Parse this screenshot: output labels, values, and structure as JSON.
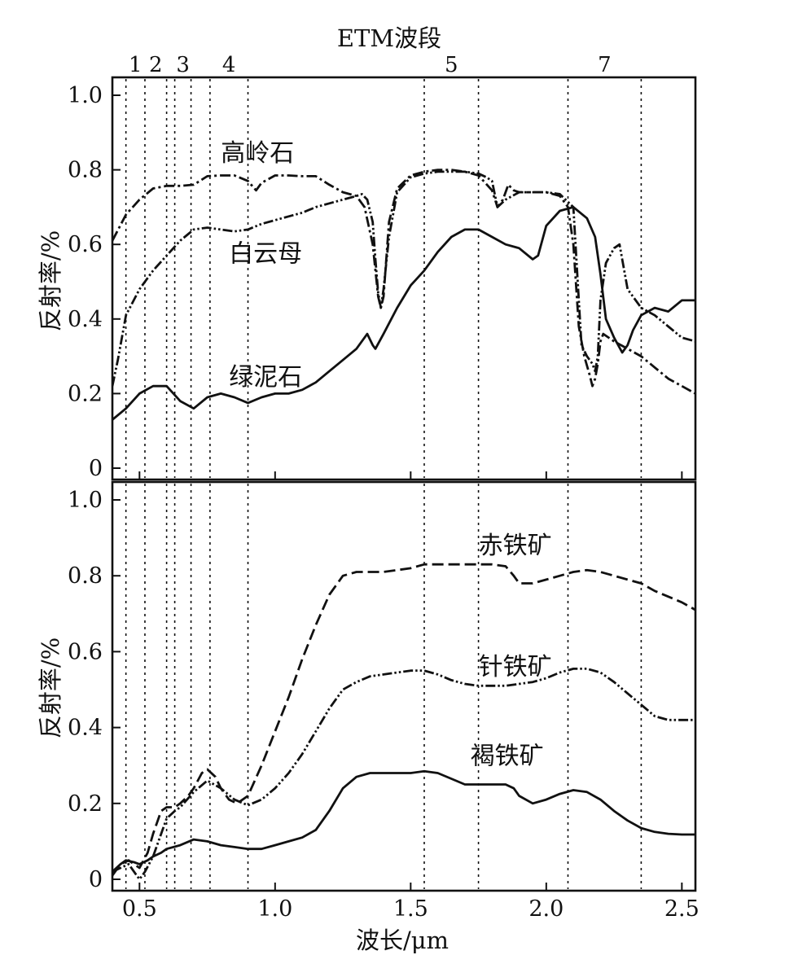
{
  "chart_data": {
    "type": "line",
    "top_label": "ETM波段",
    "xlabel": "波长/μm",
    "xlim": [
      0.4,
      2.55
    ],
    "x_ticks": [
      "0.5",
      "1.0",
      "1.5",
      "2.0",
      "2.5"
    ],
    "x_tick_values": [
      0.5,
      1.0,
      1.5,
      2.0,
      2.5
    ],
    "bands": [
      {
        "label": "1",
        "edges": [
          0.45,
          0.52
        ]
      },
      {
        "label": "2",
        "edges": [
          0.52,
          0.6
        ]
      },
      {
        "label": "3",
        "edges": [
          0.63,
          0.69
        ]
      },
      {
        "label": "4",
        "edges": [
          0.76,
          0.9
        ]
      },
      {
        "label": "5",
        "edges": [
          1.55,
          1.75
        ]
      },
      {
        "label": "7",
        "edges": [
          2.08,
          2.35
        ]
      }
    ],
    "panels": [
      {
        "ylabel": "反射率/%",
        "ylim": [
          0,
          1.0
        ],
        "y_ticks": [
          "0",
          "0.2",
          "0.4",
          "0.6",
          "0.8",
          "1.0"
        ],
        "y_tick_values": [
          0,
          0.2,
          0.4,
          0.6,
          0.8,
          1.0
        ],
        "series": [
          {
            "name": "高岭石",
            "dash": "dash-dot",
            "label_at": [
              0.8,
              0.845
            ],
            "x": [
              0.4,
              0.45,
              0.5,
              0.55,
              0.6,
              0.65,
              0.7,
              0.75,
              0.8,
              0.85,
              0.9,
              0.93,
              0.95,
              1.0,
              1.05,
              1.1,
              1.15,
              1.2,
              1.25,
              1.3,
              1.33,
              1.36,
              1.38,
              1.39,
              1.4,
              1.42,
              1.45,
              1.5,
              1.55,
              1.6,
              1.65,
              1.7,
              1.75,
              1.8,
              1.82,
              1.84,
              1.86,
              1.88,
              1.9,
              1.95,
              2.0,
              2.05,
              2.08,
              2.1,
              2.12,
              2.14,
              2.16,
              2.17,
              2.18,
              2.19,
              2.2,
              2.21,
              2.25,
              2.3,
              2.35,
              2.4,
              2.45,
              2.5,
              2.55
            ],
            "y": [
              0.61,
              0.68,
              0.72,
              0.75,
              0.757,
              0.757,
              0.76,
              0.783,
              0.785,
              0.785,
              0.77,
              0.745,
              0.765,
              0.785,
              0.785,
              0.783,
              0.783,
              0.76,
              0.74,
              0.73,
              0.7,
              0.6,
              0.46,
              0.43,
              0.46,
              0.66,
              0.75,
              0.785,
              0.795,
              0.8,
              0.8,
              0.795,
              0.785,
              0.745,
              0.7,
              0.72,
              0.76,
              0.745,
              0.74,
              0.74,
              0.74,
              0.73,
              0.7,
              0.6,
              0.38,
              0.3,
              0.25,
              0.22,
              0.24,
              0.28,
              0.34,
              0.36,
              0.34,
              0.32,
              0.3,
              0.27,
              0.24,
              0.22,
              0.2
            ]
          },
          {
            "name": "白云母",
            "dash": "dash-dot-dot",
            "label_at": [
              0.83,
              0.575
            ],
            "x": [
              0.4,
              0.42,
              0.45,
              0.5,
              0.55,
              0.6,
              0.65,
              0.7,
              0.75,
              0.8,
              0.85,
              0.9,
              0.95,
              1.0,
              1.05,
              1.1,
              1.15,
              1.2,
              1.25,
              1.3,
              1.32,
              1.34,
              1.36,
              1.37,
              1.38,
              1.39,
              1.4,
              1.42,
              1.45,
              1.5,
              1.55,
              1.6,
              1.65,
              1.7,
              1.75,
              1.78,
              1.8,
              1.82,
              1.85,
              1.9,
              1.95,
              2.0,
              2.05,
              2.1,
              2.12,
              2.13,
              2.15,
              2.17,
              2.18,
              2.19,
              2.2,
              2.22,
              2.25,
              2.27,
              2.3,
              2.35,
              2.4,
              2.45,
              2.5,
              2.55
            ],
            "y": [
              0.22,
              0.29,
              0.41,
              0.48,
              0.53,
              0.57,
              0.61,
              0.64,
              0.645,
              0.64,
              0.635,
              0.64,
              0.655,
              0.665,
              0.675,
              0.685,
              0.7,
              0.71,
              0.72,
              0.73,
              0.735,
              0.72,
              0.66,
              0.56,
              0.47,
              0.43,
              0.48,
              0.62,
              0.74,
              0.78,
              0.79,
              0.795,
              0.795,
              0.795,
              0.79,
              0.78,
              0.77,
              0.7,
              0.72,
              0.74,
              0.74,
              0.74,
              0.735,
              0.7,
              0.45,
              0.33,
              0.3,
              0.28,
              0.26,
              0.3,
              0.45,
              0.55,
              0.59,
              0.6,
              0.48,
              0.43,
              0.41,
              0.38,
              0.35,
              0.34
            ]
          },
          {
            "name": "绿泥石",
            "dash": "solid",
            "label_at": [
              0.83,
              0.245
            ],
            "x": [
              0.4,
              0.45,
              0.5,
              0.55,
              0.6,
              0.65,
              0.7,
              0.75,
              0.8,
              0.85,
              0.9,
              0.95,
              1.0,
              1.05,
              1.1,
              1.15,
              1.2,
              1.25,
              1.3,
              1.34,
              1.36,
              1.37,
              1.4,
              1.45,
              1.5,
              1.55,
              1.6,
              1.65,
              1.7,
              1.75,
              1.8,
              1.85,
              1.9,
              1.95,
              1.97,
              2.0,
              2.05,
              2.1,
              2.15,
              2.18,
              2.2,
              2.22,
              2.25,
              2.28,
              2.3,
              2.32,
              2.35,
              2.4,
              2.45,
              2.5,
              2.55
            ],
            "y": [
              0.13,
              0.16,
              0.2,
              0.22,
              0.22,
              0.18,
              0.16,
              0.19,
              0.2,
              0.19,
              0.175,
              0.19,
              0.2,
              0.2,
              0.21,
              0.23,
              0.26,
              0.29,
              0.32,
              0.36,
              0.33,
              0.32,
              0.36,
              0.43,
              0.49,
              0.53,
              0.58,
              0.62,
              0.64,
              0.64,
              0.62,
              0.6,
              0.59,
              0.56,
              0.57,
              0.65,
              0.69,
              0.7,
              0.67,
              0.62,
              0.52,
              0.4,
              0.35,
              0.31,
              0.33,
              0.37,
              0.41,
              0.43,
              0.42,
              0.45,
              0.45
            ]
          }
        ]
      },
      {
        "ylabel": "反射率/%",
        "ylim": [
          0,
          1.0
        ],
        "y_ticks": [
          "0",
          "0.2",
          "0.4",
          "0.6",
          "0.8",
          "1.0"
        ],
        "y_tick_values": [
          0,
          0.2,
          0.4,
          0.6,
          0.8,
          1.0
        ],
        "series": [
          {
            "name": "赤铁矿",
            "dash": "dash",
            "label_at": [
              1.75,
              0.88
            ],
            "x": [
              0.4,
              0.43,
              0.46,
              0.48,
              0.5,
              0.53,
              0.55,
              0.58,
              0.6,
              0.63,
              0.65,
              0.68,
              0.7,
              0.73,
              0.75,
              0.78,
              0.8,
              0.83,
              0.86,
              0.9,
              0.95,
              1.0,
              1.05,
              1.1,
              1.15,
              1.2,
              1.25,
              1.3,
              1.35,
              1.4,
              1.45,
              1.5,
              1.55,
              1.6,
              1.65,
              1.7,
              1.75,
              1.8,
              1.85,
              1.88,
              1.9,
              1.95,
              2.0,
              2.05,
              2.1,
              2.15,
              2.2,
              2.25,
              2.3,
              2.35,
              2.4,
              2.45,
              2.5,
              2.55
            ],
            "y": [
              0.01,
              0.04,
              0.05,
              0.04,
              0.03,
              0.07,
              0.12,
              0.18,
              0.19,
              0.19,
              0.2,
              0.22,
              0.24,
              0.28,
              0.29,
              0.27,
              0.24,
              0.21,
              0.2,
              0.22,
              0.3,
              0.39,
              0.48,
              0.58,
              0.67,
              0.75,
              0.8,
              0.81,
              0.81,
              0.81,
              0.815,
              0.82,
              0.83,
              0.83,
              0.83,
              0.83,
              0.83,
              0.83,
              0.825,
              0.8,
              0.78,
              0.78,
              0.79,
              0.8,
              0.81,
              0.815,
              0.81,
              0.8,
              0.79,
              0.78,
              0.76,
              0.745,
              0.73,
              0.71
            ]
          },
          {
            "name": "针铁矿",
            "dash": "dash-dot-dot",
            "label_at": [
              1.75,
              0.56
            ],
            "x": [
              0.4,
              0.43,
              0.46,
              0.48,
              0.5,
              0.52,
              0.55,
              0.58,
              0.6,
              0.63,
              0.65,
              0.7,
              0.75,
              0.8,
              0.85,
              0.9,
              0.95,
              1.0,
              1.05,
              1.1,
              1.15,
              1.2,
              1.25,
              1.3,
              1.35,
              1.4,
              1.45,
              1.5,
              1.55,
              1.6,
              1.65,
              1.7,
              1.75,
              1.8,
              1.85,
              1.9,
              1.95,
              2.0,
              2.05,
              2.1,
              2.15,
              2.2,
              2.25,
              2.3,
              2.35,
              2.4,
              2.45,
              2.5,
              2.55
            ],
            "y": [
              0.02,
              0.03,
              0.04,
              0.02,
              0.0,
              0.02,
              0.06,
              0.12,
              0.16,
              0.18,
              0.19,
              0.23,
              0.26,
              0.24,
              0.21,
              0.195,
              0.21,
              0.24,
              0.28,
              0.33,
              0.39,
              0.45,
              0.5,
              0.52,
              0.535,
              0.54,
              0.545,
              0.55,
              0.55,
              0.54,
              0.525,
              0.515,
              0.51,
              0.51,
              0.51,
              0.515,
              0.52,
              0.53,
              0.545,
              0.555,
              0.555,
              0.545,
              0.52,
              0.49,
              0.46,
              0.43,
              0.42,
              0.42,
              0.42
            ]
          },
          {
            "name": "褐铁矿",
            "dash": "solid",
            "label_at": [
              1.72,
              0.325
            ],
            "x": [
              0.4,
              0.43,
              0.45,
              0.48,
              0.5,
              0.53,
              0.55,
              0.58,
              0.6,
              0.65,
              0.7,
              0.75,
              0.8,
              0.85,
              0.9,
              0.95,
              1.0,
              1.05,
              1.1,
              1.15,
              1.2,
              1.25,
              1.3,
              1.35,
              1.4,
              1.45,
              1.5,
              1.55,
              1.6,
              1.65,
              1.7,
              1.75,
              1.8,
              1.85,
              1.88,
              1.9,
              1.95,
              2.0,
              2.05,
              2.1,
              2.15,
              2.2,
              2.25,
              2.3,
              2.35,
              2.4,
              2.45,
              2.5,
              2.55
            ],
            "y": [
              0.02,
              0.04,
              0.05,
              0.045,
              0.04,
              0.05,
              0.06,
              0.07,
              0.08,
              0.09,
              0.105,
              0.1,
              0.09,
              0.085,
              0.08,
              0.08,
              0.09,
              0.1,
              0.11,
              0.13,
              0.18,
              0.24,
              0.27,
              0.28,
              0.28,
              0.28,
              0.28,
              0.285,
              0.28,
              0.265,
              0.25,
              0.25,
              0.25,
              0.25,
              0.24,
              0.22,
              0.2,
              0.21,
              0.225,
              0.235,
              0.23,
              0.21,
              0.18,
              0.155,
              0.135,
              0.125,
              0.12,
              0.118,
              0.118
            ]
          }
        ]
      }
    ]
  }
}
